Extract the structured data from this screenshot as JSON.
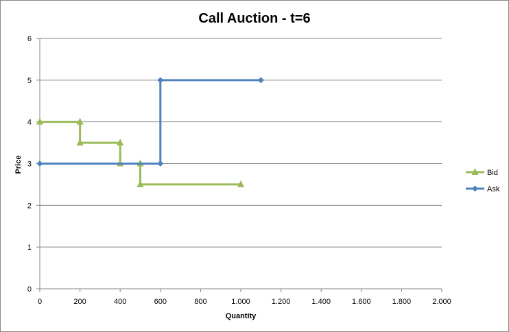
{
  "chart_data": {
    "type": "line",
    "title": "Call Auction - t=6",
    "xlabel": "Quantity",
    "ylabel": "Price",
    "xlim": [
      0,
      2000
    ],
    "ylim": [
      0,
      6
    ],
    "x_ticks": [
      "0",
      "200",
      "400",
      "600",
      "800",
      "1.000",
      "1.200",
      "1.400",
      "1.600",
      "1.800",
      "2.000"
    ],
    "y_ticks": [
      "0",
      "1",
      "2",
      "3",
      "4",
      "5",
      "6"
    ],
    "grid": "horizontal",
    "legend_position": "right",
    "series": [
      {
        "name": "Bid",
        "color": "#9BBB59",
        "marker": "triangle",
        "points": [
          {
            "x": 0,
            "y": 4
          },
          {
            "x": 200,
            "y": 4
          },
          {
            "x": 200,
            "y": 3.5
          },
          {
            "x": 400,
            "y": 3.5
          },
          {
            "x": 400,
            "y": 3
          },
          {
            "x": 500,
            "y": 3
          },
          {
            "x": 500,
            "y": 2.5
          },
          {
            "x": 1000,
            "y": 2.5
          }
        ]
      },
      {
        "name": "Ask",
        "color": "#4F81BD",
        "marker": "diamond",
        "points": [
          {
            "x": 0,
            "y": 3
          },
          {
            "x": 600,
            "y": 3
          },
          {
            "x": 600,
            "y": 5
          },
          {
            "x": 1100,
            "y": 5
          }
        ]
      }
    ]
  }
}
